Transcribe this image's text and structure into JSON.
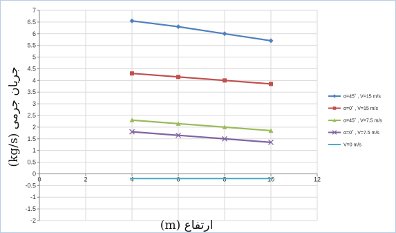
{
  "chart_data": {
    "type": "line",
    "xlabel": "ارتفاع (m)",
    "ylabel": "جریان جرمی (kg/s)",
    "xlim": [
      0,
      12
    ],
    "ylim": [
      -2,
      7
    ],
    "xticks": [
      "0",
      "2",
      "4",
      "6",
      "8",
      "10",
      "12"
    ],
    "yticks": [
      "-2",
      "-1.5",
      "-1",
      "-0.5",
      "0",
      "0.5",
      "1",
      "1.5",
      "2",
      "2.5",
      "3",
      "3.5",
      "4",
      "4.5",
      "5",
      "5.5",
      "6",
      "6.5",
      "7"
    ],
    "grid": true,
    "legend_position": "right",
    "series": [
      {
        "name": "α=45˚ , V=15 m/s",
        "color": "#4f81bd",
        "marker": "diamond",
        "x": [
          4,
          6,
          8,
          10
        ],
        "y": [
          6.55,
          6.3,
          6.0,
          5.7
        ]
      },
      {
        "name": "α=0˚ , V=15 m/s",
        "color": "#c0504d",
        "marker": "square",
        "x": [
          4,
          6,
          8,
          10
        ],
        "y": [
          4.3,
          4.15,
          4.0,
          3.85
        ]
      },
      {
        "name": "α=45˚ , V=7.5 m/s",
        "color": "#9bbb59",
        "marker": "triangle",
        "x": [
          4,
          6,
          8,
          10
        ],
        "y": [
          2.3,
          2.15,
          2.0,
          1.85
        ]
      },
      {
        "name": "α=0˚ , V=7.5 m/s",
        "color": "#8064a2",
        "marker": "x",
        "x": [
          4,
          6,
          8,
          10
        ],
        "y": [
          1.8,
          1.65,
          1.5,
          1.35
        ]
      },
      {
        "name": "V=0 m/s",
        "color": "#4bacc6",
        "marker": "none",
        "x": [
          4,
          6,
          8,
          10
        ],
        "y": [
          -0.2,
          -0.2,
          -0.2,
          -0.2
        ]
      }
    ]
  }
}
